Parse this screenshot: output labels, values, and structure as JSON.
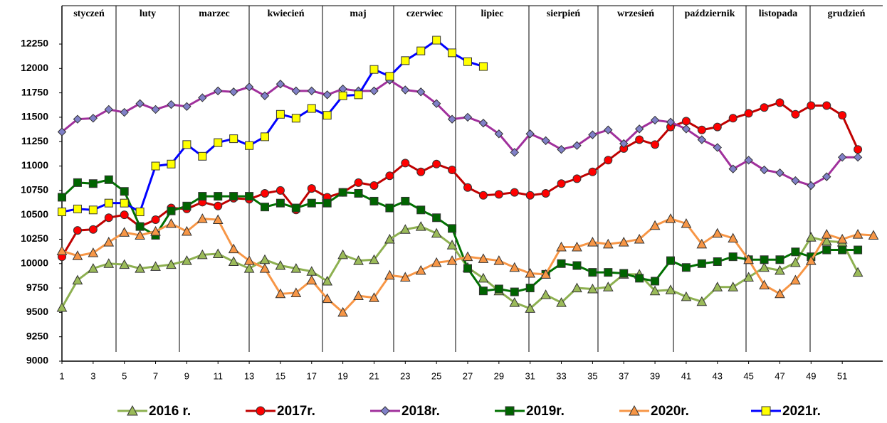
{
  "chart_data": {
    "type": "line",
    "months": [
      "styczeń",
      "luty",
      "marzec",
      "kwiecień",
      "maj",
      "czerwiec",
      "lipiec",
      "sierpień",
      "wrzesień",
      "październik",
      "listopada",
      "grudzień"
    ],
    "x": [
      1,
      2,
      3,
      4,
      5,
      6,
      7,
      8,
      9,
      10,
      11,
      12,
      13,
      14,
      15,
      16,
      17,
      18,
      19,
      20,
      21,
      22,
      23,
      24,
      25,
      26,
      27,
      28,
      29,
      30,
      31,
      32,
      33,
      34,
      35,
      36,
      37,
      38,
      39,
      40,
      41,
      42,
      43,
      44,
      45,
      46,
      47,
      48,
      49,
      50,
      51,
      52,
      53
    ],
    "xlim": [
      1,
      53
    ],
    "xticks": [
      1,
      3,
      5,
      7,
      9,
      11,
      13,
      15,
      17,
      19,
      21,
      23,
      25,
      27,
      29,
      31,
      33,
      35,
      37,
      39,
      41,
      43,
      45,
      47,
      49,
      51
    ],
    "ylim": [
      9000,
      12250
    ],
    "yticks": [
      9000,
      9250,
      9500,
      9750,
      10000,
      10250,
      10500,
      10750,
      11000,
      11250,
      11500,
      11750,
      12000,
      12250
    ],
    "grid": false,
    "legend": "bottom",
    "series": [
      {
        "name": "2016 r.",
        "color": "#8db050",
        "marker_color": "#9bbb59",
        "marker": "triangle",
        "values": [
          9550,
          9830,
          9950,
          10000,
          9990,
          9950,
          9970,
          9990,
          10030,
          10090,
          10100,
          10020,
          9950,
          10040,
          9980,
          9950,
          9920,
          9820,
          10090,
          10030,
          10040,
          10250,
          10350,
          10380,
          10310,
          10190,
          9960,
          9850,
          9720,
          9600,
          9540,
          9680,
          9600,
          9750,
          9740,
          9760,
          9890,
          9890,
          9720,
          9730,
          9660,
          9610,
          9760,
          9760,
          9860,
          9960,
          9930,
          10010,
          10270,
          10230,
          10220,
          9910,
          null
        ]
      },
      {
        "name": "2017r.",
        "color": "#c00000",
        "marker_color": "#ff0000",
        "marker": "circle",
        "values": [
          10070,
          10340,
          10350,
          10470,
          10500,
          10380,
          10450,
          10570,
          10560,
          10630,
          10590,
          10670,
          10660,
          10720,
          10750,
          10550,
          10770,
          10680,
          10730,
          10830,
          10800,
          10900,
          11030,
          10940,
          11020,
          10960,
          10780,
          10700,
          10710,
          10730,
          10700,
          10720,
          10820,
          10870,
          10940,
          11060,
          11180,
          11270,
          11220,
          11400,
          11460,
          11370,
          11400,
          11490,
          11540,
          11600,
          11650,
          11530,
          11620,
          11620,
          11520,
          11170,
          null
        ]
      },
      {
        "name": "2018r.",
        "color": "#a0309c",
        "marker_color": "#8080c8",
        "marker": "diamond",
        "values": [
          11350,
          11480,
          11490,
          11580,
          11550,
          11640,
          11580,
          11630,
          11610,
          11700,
          11770,
          11760,
          11810,
          11720,
          11840,
          11770,
          11770,
          11730,
          11790,
          11770,
          11770,
          11880,
          11780,
          11760,
          11640,
          11480,
          11500,
          11440,
          11330,
          11140,
          11330,
          11260,
          11170,
          11210,
          11320,
          11370,
          11230,
          11380,
          11470,
          11450,
          11380,
          11270,
          11190,
          10970,
          11060,
          10960,
          10930,
          10850,
          10800,
          10890,
          11090,
          11090,
          null
        ]
      },
      {
        "name": "2019r.",
        "color": "#007000",
        "marker_color": "#006400",
        "marker": "square",
        "values": [
          10680,
          10830,
          10820,
          10860,
          10740,
          10380,
          10290,
          10540,
          10590,
          10690,
          10690,
          10690,
          10690,
          10580,
          10620,
          10570,
          10620,
          10620,
          10730,
          10720,
          10640,
          10570,
          10640,
          10550,
          10470,
          10360,
          9950,
          9720,
          9740,
          9710,
          9750,
          9890,
          10000,
          9980,
          9910,
          9910,
          9900,
          9850,
          9820,
          10030,
          9960,
          10000,
          10020,
          10070,
          10040,
          10040,
          10040,
          10120,
          10070,
          10140,
          10140,
          10140,
          null
        ]
      },
      {
        "name": "2020r.",
        "color": "#f79646",
        "marker_color": "#f79646",
        "marker": "triangle",
        "values": [
          10130,
          10080,
          10110,
          10220,
          10320,
          10290,
          10330,
          10410,
          10330,
          10460,
          10450,
          10150,
          10030,
          9950,
          9690,
          9700,
          9830,
          9640,
          9500,
          9670,
          9650,
          9880,
          9860,
          9930,
          10010,
          10030,
          10070,
          10050,
          10030,
          9960,
          9900,
          9890,
          10170,
          10170,
          10220,
          10200,
          10220,
          10250,
          10390,
          10460,
          10410,
          10200,
          10310,
          10260,
          10040,
          9780,
          9690,
          9830,
          10030,
          10300,
          10250,
          10300,
          10290
        ]
      },
      {
        "name": "2021r.",
        "color": "#0000ff",
        "marker_color": "#ffff00",
        "marker": "square",
        "values": [
          10530,
          10560,
          10550,
          10620,
          10620,
          10530,
          11000,
          11020,
          11220,
          11100,
          11240,
          11280,
          11210,
          11300,
          11530,
          11490,
          11590,
          11520,
          11720,
          11730,
          11990,
          11920,
          12080,
          12180,
          12290,
          12160,
          12070,
          12020,
          null,
          null,
          null,
          null,
          null,
          null,
          null,
          null,
          null,
          null,
          null,
          null,
          null,
          null,
          null,
          null,
          null,
          null,
          null,
          null,
          null,
          null,
          null,
          null,
          null
        ]
      }
    ]
  }
}
